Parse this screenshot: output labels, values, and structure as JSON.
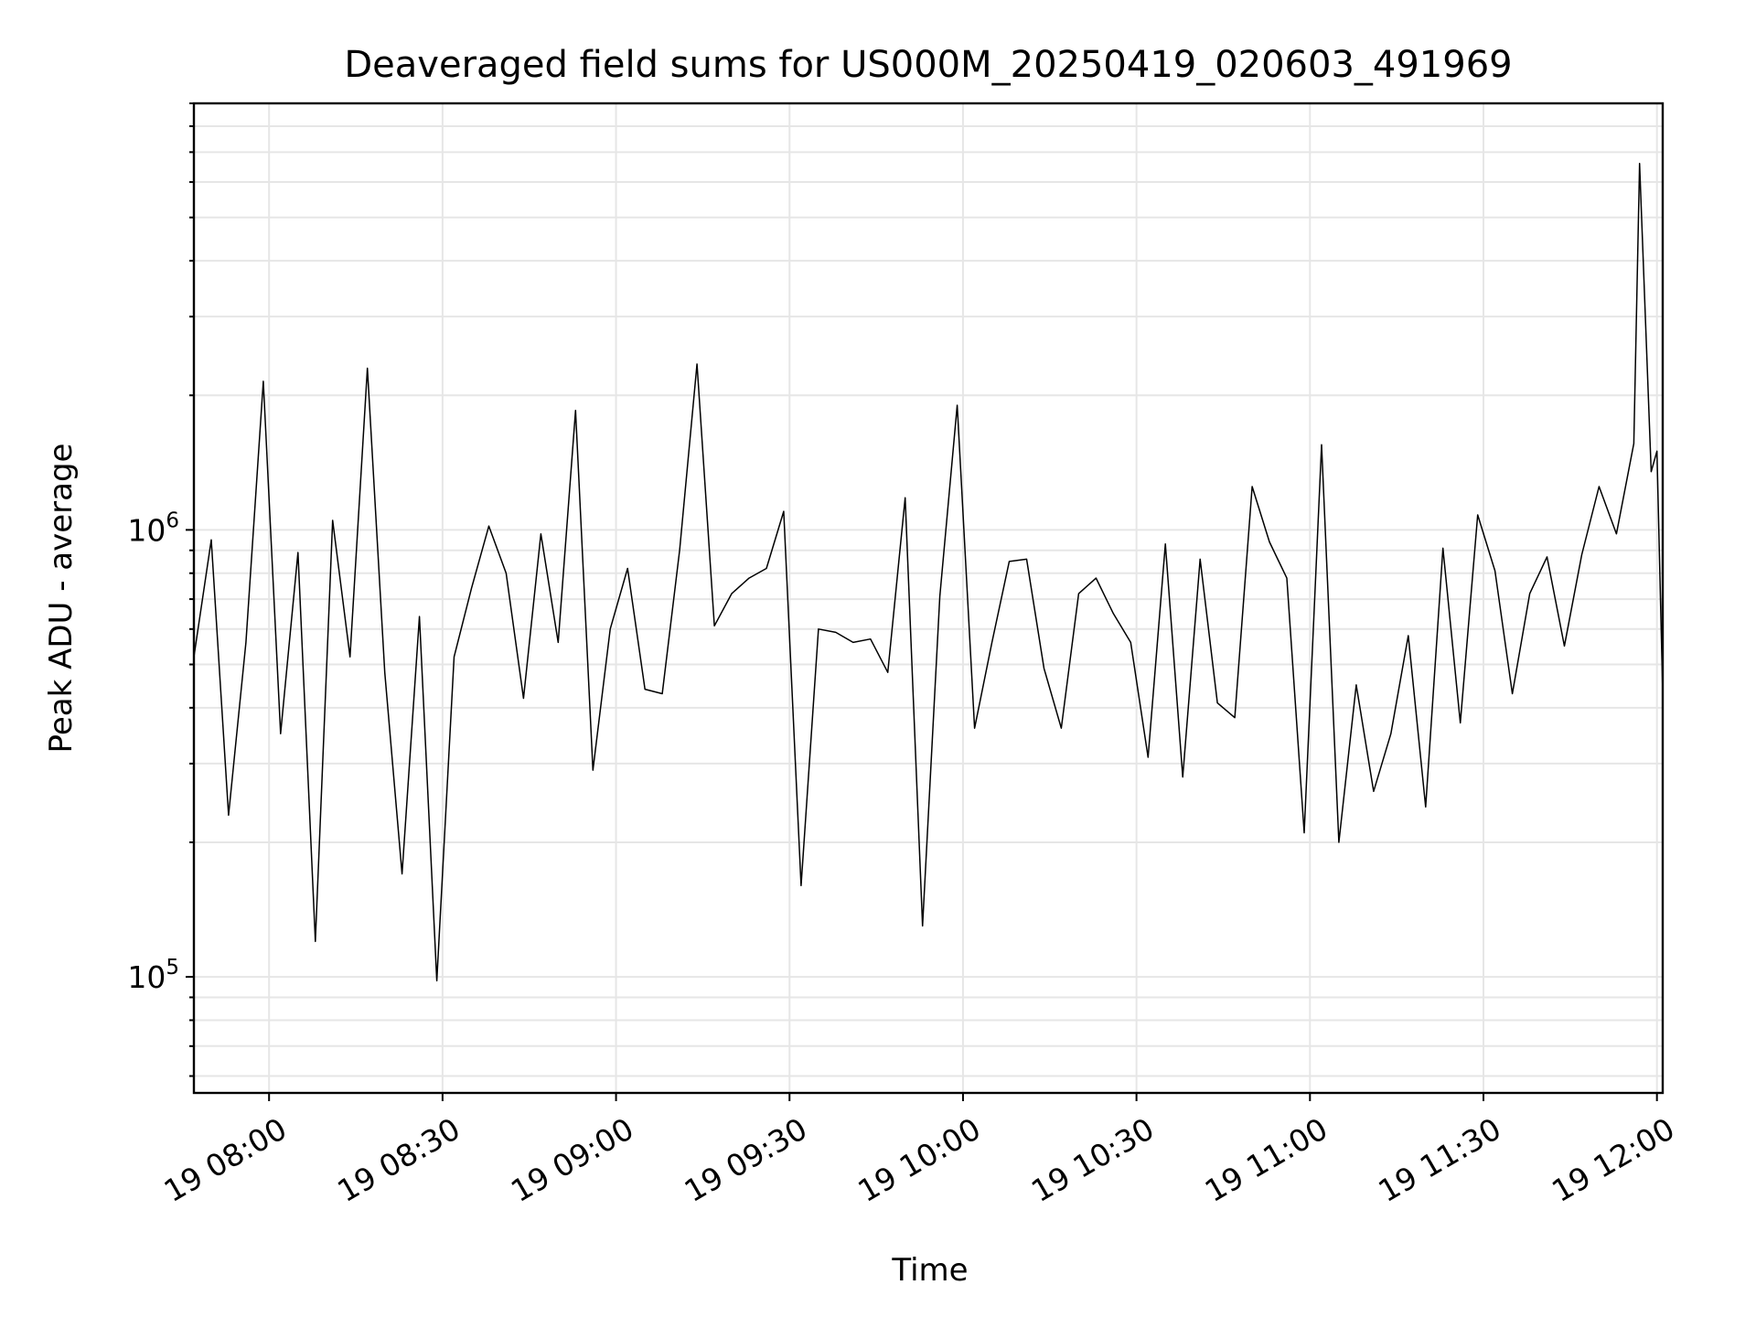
{
  "chart_data": {
    "type": "line",
    "title": "Deaveraged field sums for US000M_20250419_020603_491969",
    "xlabel": "Time",
    "ylabel": "Peak ADU - average",
    "y_scale": "log",
    "ylim": [
      55000,
      9000000
    ],
    "xlim": [
      "2025-04-19 07:47",
      "2025-04-19 12:01"
    ],
    "grid": true,
    "legend": "none",
    "x_ticks": [
      "19 08:00",
      "19 08:30",
      "19 09:00",
      "19 09:30",
      "19 10:00",
      "19 10:30",
      "19 11:00",
      "19 11:30",
      "19 12:00"
    ],
    "y_ticks": [
      {
        "base": "10",
        "exp": "5",
        "value": 100000
      },
      {
        "base": "10",
        "exp": "6",
        "value": 1000000
      }
    ],
    "series": [
      {
        "color": "#000000",
        "line_width": 1.5,
        "x": [
          "2025-04-19 07:47",
          "2025-04-19 07:50",
          "2025-04-19 07:53",
          "2025-04-19 07:56",
          "2025-04-19 07:59",
          "2025-04-19 08:02",
          "2025-04-19 08:05",
          "2025-04-19 08:08",
          "2025-04-19 08:11",
          "2025-04-19 08:14",
          "2025-04-19 08:17",
          "2025-04-19 08:20",
          "2025-04-19 08:23",
          "2025-04-19 08:26",
          "2025-04-19 08:29",
          "2025-04-19 08:32",
          "2025-04-19 08:35",
          "2025-04-19 08:38",
          "2025-04-19 08:41",
          "2025-04-19 08:44",
          "2025-04-19 08:47",
          "2025-04-19 08:50",
          "2025-04-19 08:53",
          "2025-04-19 08:56",
          "2025-04-19 08:59",
          "2025-04-19 09:02",
          "2025-04-19 09:05",
          "2025-04-19 09:08",
          "2025-04-19 09:11",
          "2025-04-19 09:14",
          "2025-04-19 09:17",
          "2025-04-19 09:20",
          "2025-04-19 09:23",
          "2025-04-19 09:26",
          "2025-04-19 09:29",
          "2025-04-19 09:32",
          "2025-04-19 09:35",
          "2025-04-19 09:38",
          "2025-04-19 09:41",
          "2025-04-19 09:44",
          "2025-04-19 09:47",
          "2025-04-19 09:50",
          "2025-04-19 09:53",
          "2025-04-19 09:56",
          "2025-04-19 09:59",
          "2025-04-19 10:02",
          "2025-04-19 10:05",
          "2025-04-19 10:08",
          "2025-04-19 10:11",
          "2025-04-19 10:14",
          "2025-04-19 10:17",
          "2025-04-19 10:20",
          "2025-04-19 10:23",
          "2025-04-19 10:26",
          "2025-04-19 10:29",
          "2025-04-19 10:32",
          "2025-04-19 10:35",
          "2025-04-19 10:38",
          "2025-04-19 10:41",
          "2025-04-19 10:44",
          "2025-04-19 10:47",
          "2025-04-19 10:50",
          "2025-04-19 10:53",
          "2025-04-19 10:56",
          "2025-04-19 10:59",
          "2025-04-19 11:02",
          "2025-04-19 11:05",
          "2025-04-19 11:08",
          "2025-04-19 11:11",
          "2025-04-19 11:14",
          "2025-04-19 11:17",
          "2025-04-19 11:20",
          "2025-04-19 11:23",
          "2025-04-19 11:26",
          "2025-04-19 11:29",
          "2025-04-19 11:32",
          "2025-04-19 11:35",
          "2025-04-19 11:38",
          "2025-04-19 11:41",
          "2025-04-19 11:44",
          "2025-04-19 11:47",
          "2025-04-19 11:50",
          "2025-04-19 11:53",
          "2025-04-19 11:56",
          "2025-04-19 11:57",
          "2025-04-19 11:59",
          "2025-04-19 12:00",
          "2025-04-19 12:01"
        ],
        "y": [
          520000,
          950000,
          230000,
          560000,
          2150000,
          350000,
          890000,
          120000,
          1050000,
          520000,
          2300000,
          480000,
          170000,
          640000,
          98000,
          520000,
          740000,
          1020000,
          800000,
          420000,
          980000,
          560000,
          1850000,
          290000,
          600000,
          820000,
          440000,
          430000,
          900000,
          2350000,
          610000,
          720000,
          780000,
          820000,
          1100000,
          160000,
          600000,
          590000,
          560000,
          570000,
          480000,
          1180000,
          130000,
          710000,
          1900000,
          360000,
          560000,
          850000,
          860000,
          490000,
          360000,
          720000,
          780000,
          650000,
          560000,
          310000,
          930000,
          280000,
          860000,
          410000,
          380000,
          1250000,
          940000,
          780000,
          210000,
          1550000,
          200000,
          450000,
          260000,
          350000,
          580000,
          240000,
          910000,
          370000,
          1080000,
          810000,
          430000,
          720000,
          870000,
          550000,
          880000,
          1250000,
          980000,
          1560000,
          6600000,
          1350000,
          1500000,
          430000
        ]
      }
    ]
  }
}
